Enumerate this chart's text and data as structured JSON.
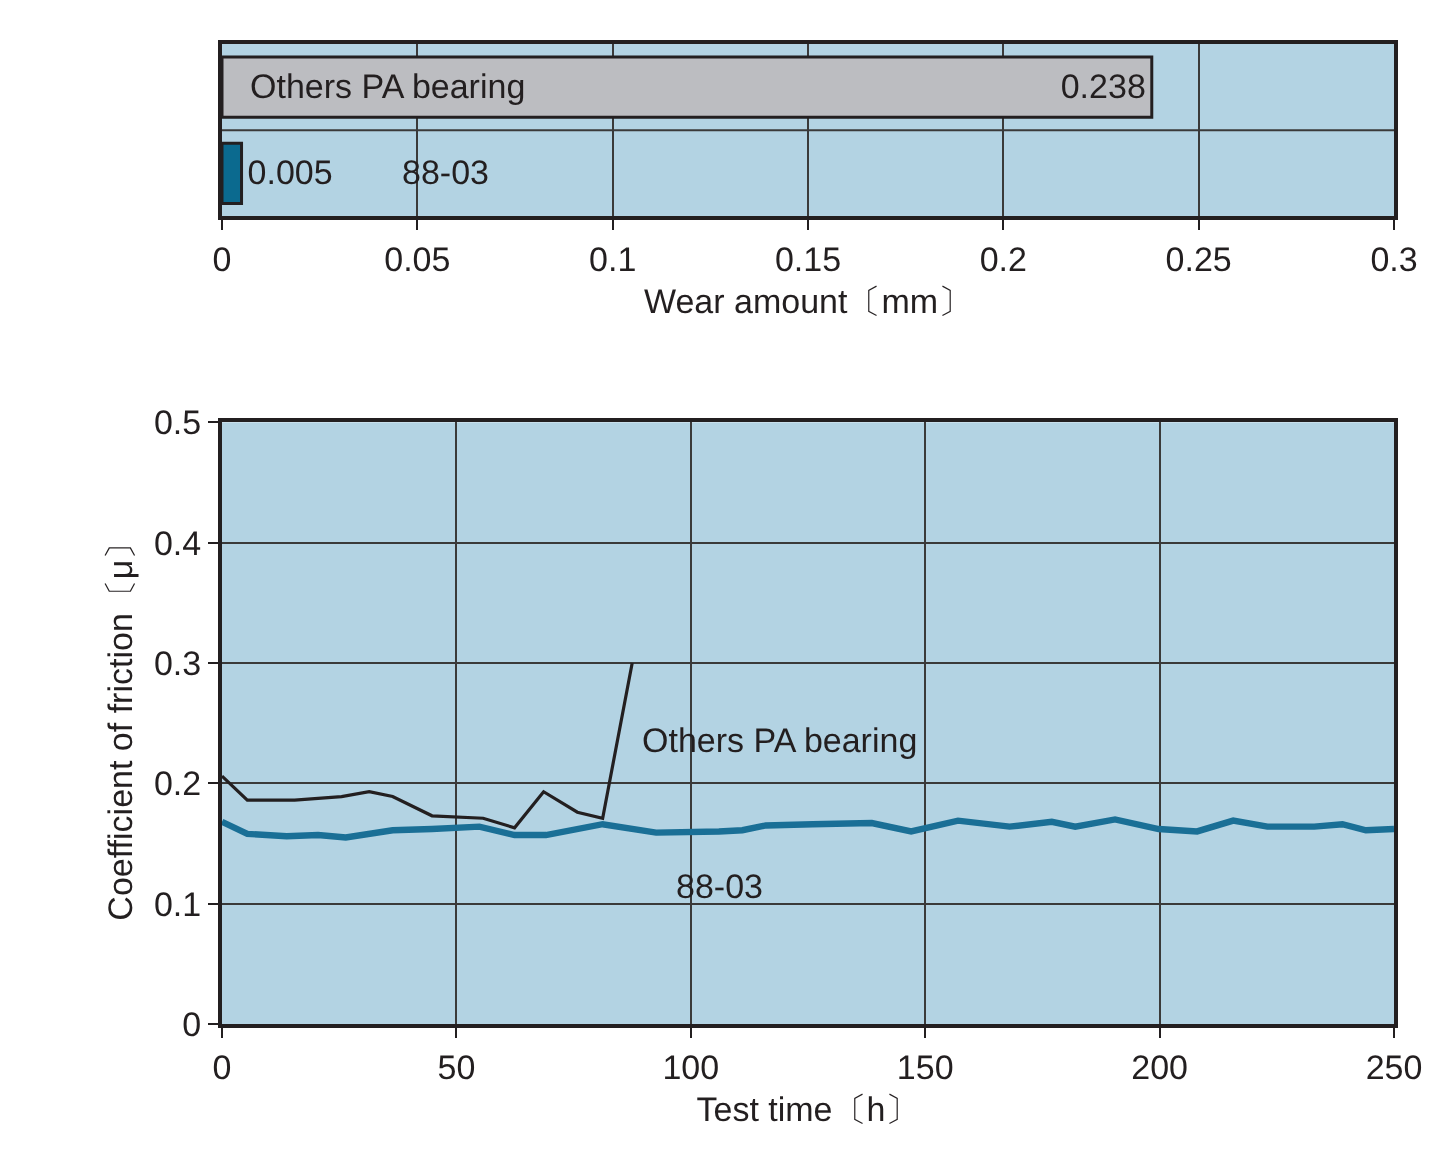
{
  "chart_data": [
    {
      "type": "bar",
      "orientation": "horizontal",
      "xlabel": "Wear amount〔mm〕",
      "categories": [
        "Others PA bearing",
        "88-03"
      ],
      "values": [
        0.238,
        0.005
      ],
      "colors": [
        "#bcbdc1",
        "#0b6a8f"
      ],
      "data_labels": true,
      "xlim": [
        0,
        0.3
      ],
      "xticks": [
        0,
        0.05,
        0.1,
        0.15,
        0.2,
        0.25,
        0.3
      ],
      "grid": "x",
      "tick_labels": "x"
    },
    {
      "type": "line",
      "xlabel": "Test time〔h〕",
      "ylabel": "Coefficient of friction〔μ〕",
      "xlim": [
        0,
        250
      ],
      "ylim": [
        0,
        0.5
      ],
      "xticks": [
        0,
        50,
        100,
        150,
        200,
        250
      ],
      "yticks": [
        0,
        0.1,
        0.2,
        0.3,
        0.4,
        0.5
      ],
      "grid": true,
      "line_style": "solid",
      "marker": "none",
      "series": [
        {
          "name": "Others PA bearing",
          "color": "#231f20",
          "x": [
            0,
            5.4,
            15.5,
            25.5,
            31.4,
            36.4,
            44.8,
            55.7,
            62.4,
            68.6,
            75.8,
            81.2,
            87.5
          ],
          "values": [
            0.206,
            0.186,
            0.186,
            0.189,
            0.193,
            0.189,
            0.173,
            0.171,
            0.163,
            0.193,
            0.176,
            0.171,
            0.3
          ]
        },
        {
          "name": "88-03",
          "color": "#1a6f96",
          "x": [
            0,
            5.4,
            13.8,
            20.5,
            26.4,
            36.4,
            44.8,
            54.9,
            62.4,
            69.1,
            81.2,
            92.6,
            106,
            111,
            116,
            126,
            138.6,
            147,
            157,
            168,
            177,
            182,
            190.5,
            199.8,
            208,
            215.7,
            223,
            233,
            239,
            244,
            250
          ],
          "values": [
            0.168,
            0.158,
            0.156,
            0.157,
            0.155,
            0.161,
            0.162,
            0.164,
            0.157,
            0.157,
            0.166,
            0.159,
            0.16,
            0.161,
            0.165,
            0.166,
            0.167,
            0.16,
            0.169,
            0.164,
            0.168,
            0.164,
            0.17,
            0.162,
            0.16,
            0.169,
            0.164,
            0.164,
            0.166,
            0.161,
            0.162
          ]
        }
      ]
    }
  ]
}
